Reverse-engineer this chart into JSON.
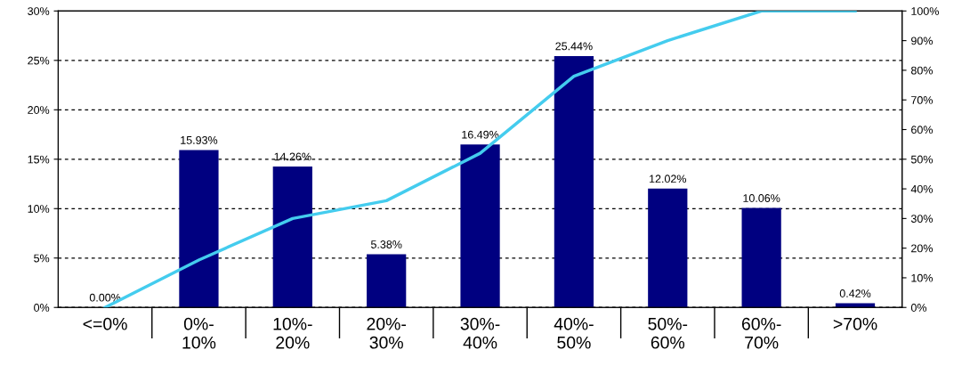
{
  "chart_data": {
    "type": "bar",
    "categories": [
      "<=0%",
      "0%-\n10%",
      "10%-\n20%",
      "20%-\n30%",
      "30%-\n40%",
      "40%-\n50%",
      "50%-\n60%",
      "60%-\n70%",
      ">70%"
    ],
    "series": [
      {
        "color": "#000080",
        "values": [
          0.0,
          15.93,
          14.26,
          5.38,
          16.49,
          25.44,
          12.02,
          10.06,
          0.42
        ],
        "value_labels": [
          "0.00%",
          "15.93%",
          "14.26%",
          "5.38%",
          "16.49%",
          "25.44%",
          "12.02%",
          "10.06%",
          "0.42%"
        ]
      },
      {
        "type": "line",
        "axis": "y2",
        "color": "#44ccee",
        "values": [
          0,
          16,
          30,
          36,
          52,
          78,
          90,
          100,
          100
        ]
      }
    ],
    "ylim": [
      0,
      30
    ],
    "yticks": [
      {
        "value": 0,
        "label": "0%"
      },
      {
        "value": 5,
        "label": "5%"
      },
      {
        "value": 10,
        "label": "10%"
      },
      {
        "value": 15,
        "label": "15%"
      },
      {
        "value": 20,
        "label": "20%"
      },
      {
        "value": 25,
        "label": "25%"
      },
      {
        "value": 30,
        "label": "30%"
      }
    ],
    "y2lim": [
      0,
      100
    ],
    "y2ticks": [
      {
        "value": 0,
        "label": "0%"
      },
      {
        "value": 10,
        "label": "10%"
      },
      {
        "value": 20,
        "label": "20%"
      },
      {
        "value": 30,
        "label": "30%"
      },
      {
        "value": 40,
        "label": "40%"
      },
      {
        "value": 50,
        "label": "50%"
      },
      {
        "value": 60,
        "label": "60%"
      },
      {
        "value": 70,
        "label": "70%"
      },
      {
        "value": 80,
        "label": "80%"
      },
      {
        "value": 90,
        "label": "90%"
      },
      {
        "value": 100,
        "label": "100%"
      }
    ],
    "grid": "y",
    "line_style": "solid"
  }
}
